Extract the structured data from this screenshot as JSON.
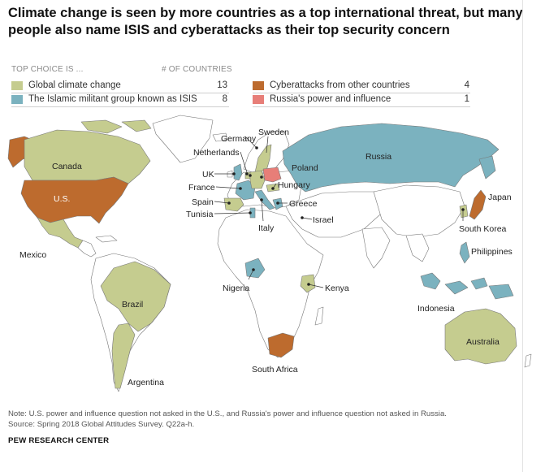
{
  "title": "Climate change is seen by more countries as a top international threat, but many people also name ISIS and cyberattacks as their top security concern",
  "legend": {
    "header_choice": "TOP CHOICE IS ...",
    "header_count": "# OF COUNTRIES",
    "items": [
      {
        "label": "Global climate change",
        "count": "13",
        "color": "#c5cc8f"
      },
      {
        "label": "The Islamic militant group known as ISIS",
        "count": "8",
        "color": "#7bb2bf"
      },
      {
        "label": "Cyberattacks from other countries",
        "count": "4",
        "color": "#bd6b2e"
      },
      {
        "label": "Russia's power and influence",
        "count": "1",
        "color": "#e77e78"
      }
    ]
  },
  "colors": {
    "climate": "#c5cc8f",
    "isis": "#7bb2bf",
    "cyber": "#bd6b2e",
    "russia_power": "#e77e78",
    "not_surveyed": "#ffffff",
    "border": "#777777"
  },
  "countries": {
    "canada": "Canada",
    "us": "U.S.",
    "mexico": "Mexico",
    "brazil": "Brazil",
    "argentina": "Argentina",
    "germany": "Germany",
    "sweden": "Sweden",
    "netherlands": "Netherlands",
    "uk": "UK",
    "france": "France",
    "spain": "Spain",
    "tunisia": "Tunisia",
    "poland": "Poland",
    "hungary": "Hungary",
    "greece": "Greece",
    "italy": "Italy",
    "israel": "Israel",
    "russia": "Russia",
    "japan": "Japan",
    "south_korea": "South Korea",
    "philippines": "Philippines",
    "indonesia": "Indonesia",
    "australia": "Australia",
    "nigeria": "Nigeria",
    "kenya": "Kenya",
    "south_africa": "South Africa"
  },
  "note": "Note: U.S. power and influence question not asked in the U.S., and Russia's power and influence question not asked in Russia.",
  "source": "Source: Spring 2018 Global Attitudes Survey. Q22a-h.",
  "credit": "PEW RESEARCH CENTER"
}
